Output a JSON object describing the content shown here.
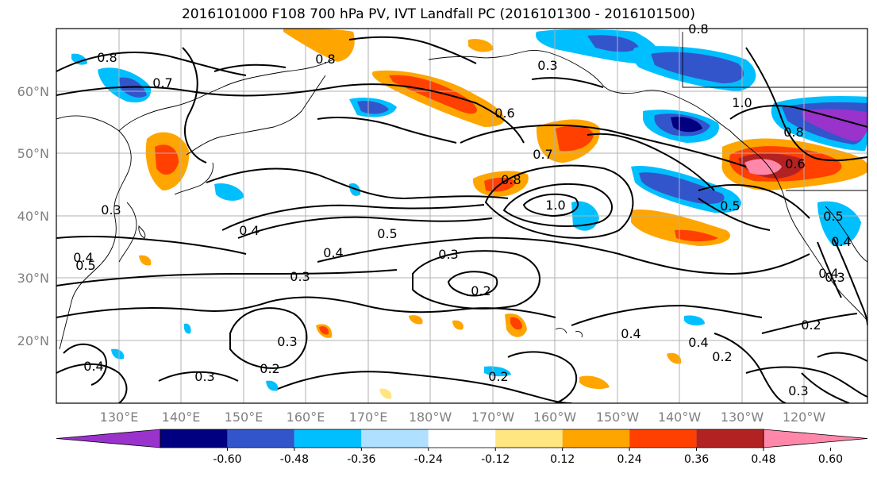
{
  "title": "2016101000 F108 700 hPa PV, IVT Landfall PC (2016101300 - 2016101500)",
  "lat_labels": [
    "60°N",
    "50°N",
    "40°N",
    "30°N",
    "20°N"
  ],
  "lon_labels": [
    "130°E",
    "140°E",
    "150°E",
    "160°E",
    "170°E",
    "180°W",
    "170°W",
    "160°W",
    "150°W",
    "140°W",
    "130°W",
    "120°W"
  ],
  "colorbar": {
    "colors": [
      "#9933cc",
      "#000080",
      "#3355cc",
      "#00bfff",
      "#b0e0ff",
      "#ffffff",
      "#ffe680",
      "#ffa500",
      "#ff4000",
      "#b22222",
      "#ff88aa"
    ],
    "tick_labels": [
      "-0.60",
      "-0.48",
      "-0.36",
      "-0.24",
      "-0.12",
      "0.12",
      "0.24",
      "0.36",
      "0.48",
      "0.60"
    ]
  },
  "contour_labels": [
    "0.8",
    "0.7",
    "0.8",
    "0.3",
    "0.5",
    "0.8",
    "0.6",
    "1.0",
    "0.8",
    "0.6",
    "0.7",
    "0.8",
    "1.0",
    "0.5",
    "0.4",
    "0.5",
    "0.4",
    "0.3",
    "0.3",
    "0.2",
    "0.5",
    "0.4",
    "0.3",
    "0.2",
    "0.3",
    "0.4",
    "0.4",
    "0.2",
    "0.4",
    "0.2",
    "0.2",
    "0.3",
    "0.4",
    "0.3",
    "0.3",
    "0.4"
  ]
}
